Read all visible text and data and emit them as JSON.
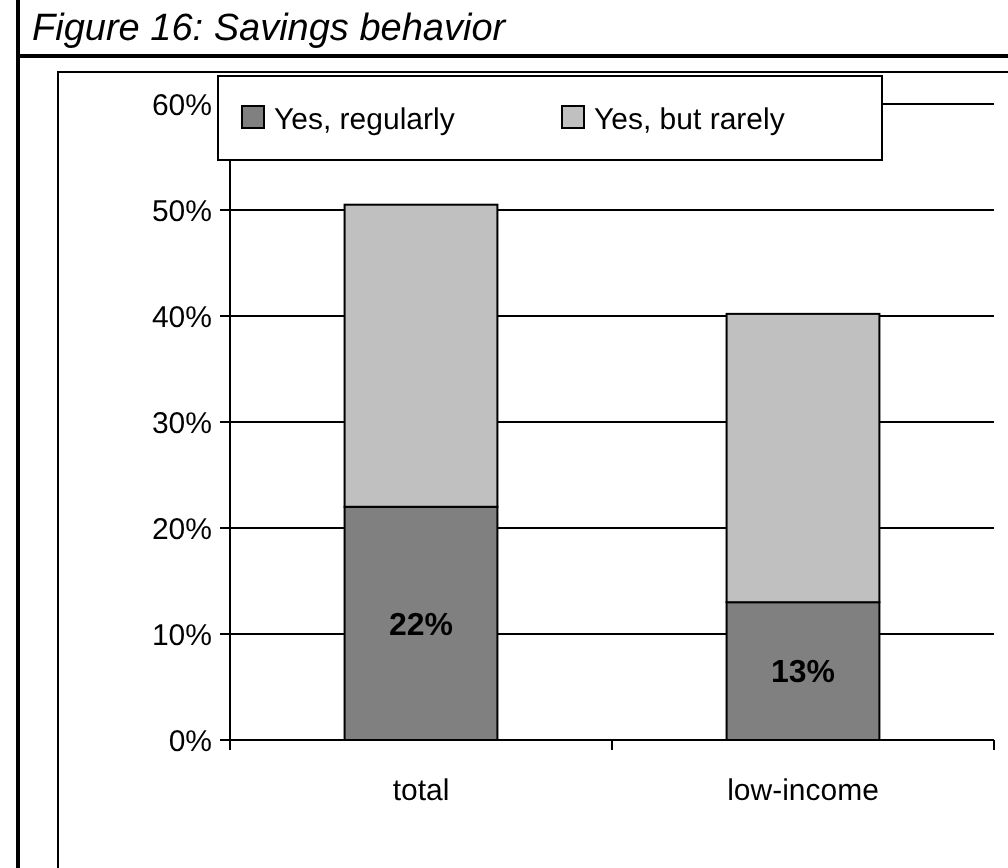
{
  "chart_data": {
    "type": "bar",
    "title": "Figure 16: Savings behavior",
    "categories": [
      "total",
      "low-income"
    ],
    "stacked": true,
    "series": [
      {
        "name": "Yes, regularly",
        "color": "#808080",
        "values": [
          22,
          13
        ],
        "value_labels": [
          "22%",
          "13%"
        ]
      },
      {
        "name": "Yes, but rarely",
        "color": "#c0c0c0",
        "values": [
          28.5,
          27.2
        ]
      }
    ],
    "ylim": [
      0,
      60
    ],
    "yticks": [
      {
        "value": 0,
        "label": "0%"
      },
      {
        "value": 10,
        "label": "10%"
      },
      {
        "value": 20,
        "label": "20%"
      },
      {
        "value": 30,
        "label": "30%"
      },
      {
        "value": 40,
        "label": "40%"
      },
      {
        "value": 50,
        "label": "50%"
      },
      {
        "value": 60,
        "label": "60%"
      }
    ],
    "grid": "y",
    "legend": "top"
  }
}
